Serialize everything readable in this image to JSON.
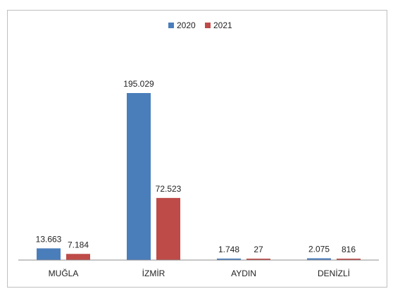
{
  "chart_data": {
    "type": "bar",
    "categories": [
      "MUĞLA",
      "İZMİR",
      "AYDIN",
      "DENİZLİ"
    ],
    "series": [
      {
        "name": "2020",
        "color": "#4a7ebb",
        "values": [
          13663,
          195029,
          1748,
          2075
        ],
        "labels": [
          "13.663",
          "195.029",
          "1.748",
          "2.075"
        ]
      },
      {
        "name": "2021",
        "color": "#be4b48",
        "values": [
          7184,
          72523,
          27,
          816
        ],
        "labels": [
          "7.184",
          "72.523",
          "27",
          "816"
        ]
      }
    ],
    "title": "",
    "xlabel": "",
    "ylabel": "",
    "ylim": [
      0,
      200000
    ],
    "grid": false,
    "legend_position": "top-center"
  }
}
